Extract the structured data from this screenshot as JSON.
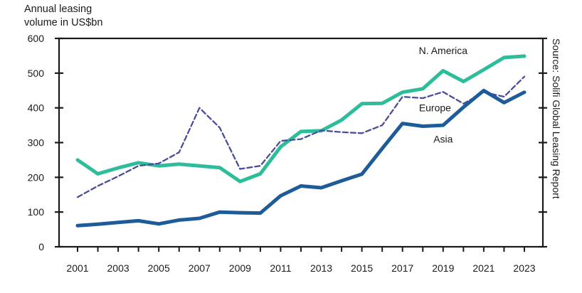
{
  "chart_data": {
    "type": "line",
    "title": "",
    "ylabel": "Annual leasing volume in US$bn",
    "xlabel": "",
    "source": "Source: Solifi Global Leasing Report",
    "ylim": [
      0,
      600
    ],
    "yticks": [
      0,
      100,
      200,
      300,
      400,
      500,
      600
    ],
    "xlim": [
      2001,
      2023
    ],
    "xticks": [
      2001,
      2003,
      2005,
      2007,
      2009,
      2011,
      2013,
      2015,
      2017,
      2019,
      2021,
      2023
    ],
    "x": [
      2001,
      2002,
      2003,
      2004,
      2005,
      2006,
      2007,
      2008,
      2009,
      2010,
      2011,
      2012,
      2013,
      2014,
      2015,
      2016,
      2017,
      2018,
      2019,
      2020,
      2021,
      2022,
      2023
    ],
    "series": [
      {
        "name": "N. America",
        "color": "#2ebd9a",
        "style": "solid",
        "values": [
          250,
          210,
          227,
          242,
          233,
          238,
          233,
          228,
          188,
          210,
          288,
          332,
          334,
          365,
          412,
          413,
          445,
          455,
          507,
          476,
          510,
          545,
          549
        ]
      },
      {
        "name": "Europe",
        "color": "#4a4d9a",
        "style": "dashed",
        "values": [
          143,
          175,
          203,
          233,
          240,
          272,
          400,
          343,
          224,
          233,
          305,
          310,
          335,
          330,
          327,
          350,
          432,
          428,
          446,
          412,
          445,
          432,
          490
        ]
      },
      {
        "name": "Asia",
        "color": "#1e5c99",
        "style": "solid",
        "values": [
          61,
          65,
          70,
          75,
          66,
          77,
          82,
          100,
          98,
          97,
          147,
          175,
          170,
          190,
          209,
          283,
          355,
          347,
          350,
          402,
          450,
          415,
          445
        ]
      }
    ]
  }
}
